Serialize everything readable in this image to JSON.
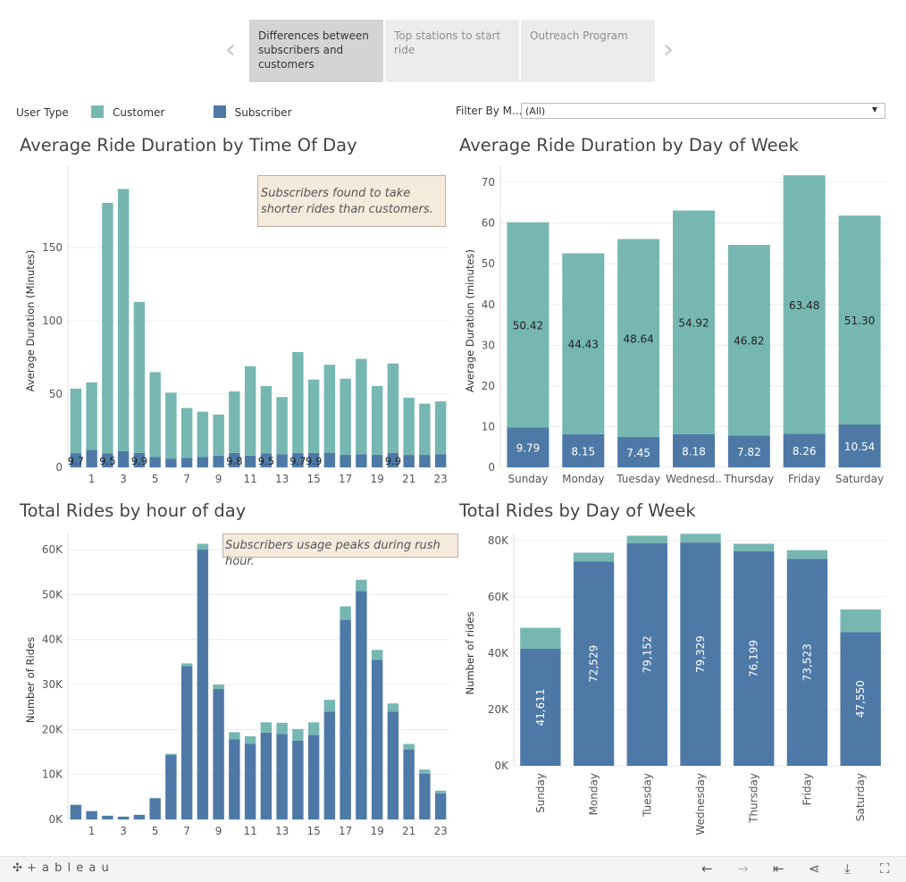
{
  "story": {
    "points": [
      {
        "label": "Differences between subscribers and customers",
        "active": true
      },
      {
        "label": "Top stations to start ride",
        "active": false
      },
      {
        "label": "Outreach Program",
        "active": false
      }
    ],
    "prev_arrow": "‹",
    "next_arrow": "›"
  },
  "legend": {
    "title": "User Type",
    "items": [
      {
        "label": "Customer",
        "color": "#76b7b2"
      },
      {
        "label": "Subscriber",
        "color": "#4e79a7"
      }
    ]
  },
  "filter": {
    "label": "Filter By M...",
    "value": "(All)",
    "caret": "▼"
  },
  "colors": {
    "customer": "#76b7b2",
    "subscriber": "#4e79a7",
    "grid": "#ececec",
    "axis_text": "#555555"
  },
  "chart_data": [
    {
      "type": "bar",
      "stacked": true,
      "title": "Average Ride Duration by Time Of Day",
      "ylabel": "Average Duration (Minutes)",
      "xlabel": "",
      "ylim": [
        0,
        200
      ],
      "yticks": [
        0,
        50,
        100,
        150
      ],
      "x": [
        0,
        1,
        2,
        3,
        4,
        5,
        6,
        7,
        8,
        9,
        10,
        11,
        12,
        13,
        14,
        15,
        16,
        17,
        18,
        19,
        20,
        21,
        22,
        23
      ],
      "xtick_labels": [
        "1",
        "3",
        "5",
        "7",
        "9",
        "11",
        "13",
        "15",
        "17",
        "19",
        "21",
        "23"
      ],
      "xtick_positions": [
        1,
        3,
        5,
        7,
        9,
        11,
        13,
        15,
        17,
        19,
        21,
        23
      ],
      "series": [
        {
          "name": "Subscriber",
          "values": [
            9.7,
            12,
            9.5,
            11,
            9.9,
            7,
            6,
            6.5,
            7,
            8,
            9.8,
            8,
            9.5,
            9,
            9.7,
            9.9,
            10,
            8.5,
            9,
            8.5,
            9.9,
            8.5,
            8.5,
            9
          ]
        },
        {
          "name": "Customer",
          "values": [
            44,
            46,
            171,
            179,
            103,
            58,
            45,
            34,
            31,
            28,
            42,
            61,
            46,
            39,
            69,
            50,
            60,
            52,
            65,
            47,
            61,
            39,
            35,
            36
          ]
        }
      ],
      "data_labels": [
        {
          "x": 0,
          "text": "9.7"
        },
        {
          "x": 2,
          "text": "9.5"
        },
        {
          "x": 4,
          "text": "9.9"
        },
        {
          "x": 10,
          "text": "9.8"
        },
        {
          "x": 12,
          "text": "9.5"
        },
        {
          "x": 14,
          "text": "9.7"
        },
        {
          "x": 15,
          "text": "9.9"
        },
        {
          "x": 20,
          "text": "9.9"
        }
      ],
      "annotation": "Subscribers found to take shorter rides than customers."
    },
    {
      "type": "bar",
      "stacked": true,
      "title": "Average Ride Duration by Day of Week",
      "ylabel": "Average Duration (minutes)",
      "xlabel": "",
      "ylim": [
        0,
        72
      ],
      "yticks": [
        0,
        10,
        20,
        30,
        40,
        50,
        60,
        70
      ],
      "categories": [
        "Sunday",
        "Monday",
        "Tuesday",
        "Wednesd..",
        "Thursday",
        "Friday",
        "Saturday"
      ],
      "series": [
        {
          "name": "Subscriber",
          "values": [
            9.79,
            8.15,
            7.45,
            8.18,
            7.82,
            8.26,
            10.54
          ],
          "labels": [
            "9.79",
            "8.15",
            "7.45",
            "8.18",
            "7.82",
            "8.26",
            "10.54"
          ]
        },
        {
          "name": "Customer",
          "values": [
            50.42,
            44.43,
            48.64,
            54.92,
            46.82,
            63.48,
            51.3
          ],
          "labels": [
            "50.42",
            "44.43",
            "48.64",
            "54.92",
            "46.82",
            "63.48",
            "51.30"
          ]
        }
      ]
    },
    {
      "type": "bar",
      "stacked": true,
      "title": "Total Rides by hour of day",
      "ylabel": "Number of Rides",
      "xlabel": "",
      "ylim": [
        0,
        62000
      ],
      "yticks": [
        0,
        10000,
        20000,
        30000,
        40000,
        50000,
        60000
      ],
      "ytick_labels": [
        "0K",
        "10K",
        "20K",
        "30K",
        "40K",
        "50K",
        "60K"
      ],
      "x": [
        0,
        1,
        2,
        3,
        4,
        5,
        6,
        7,
        8,
        9,
        10,
        11,
        12,
        13,
        14,
        15,
        16,
        17,
        18,
        19,
        20,
        21,
        22,
        23
      ],
      "xtick_labels": [
        "1",
        "3",
        "5",
        "7",
        "9",
        "11",
        "13",
        "15",
        "17",
        "19",
        "21",
        "23"
      ],
      "xtick_positions": [
        1,
        3,
        5,
        7,
        9,
        11,
        13,
        15,
        17,
        19,
        21,
        23
      ],
      "series": [
        {
          "name": "Subscriber",
          "values": [
            3200,
            1800,
            800,
            600,
            1000,
            4700,
            14300,
            34100,
            60000,
            29000,
            17800,
            16800,
            19300,
            19000,
            17500,
            18800,
            24000,
            44400,
            50800,
            35500,
            24000,
            15500,
            10200,
            5800
          ]
        },
        {
          "name": "Customer",
          "values": [
            100,
            100,
            50,
            50,
            50,
            100,
            300,
            600,
            1300,
            1000,
            1600,
            1700,
            2300,
            2500,
            2600,
            2800,
            2600,
            3000,
            2500,
            2200,
            1800,
            1300,
            900,
            600
          ]
        }
      ],
      "annotation": "Subscribers usage peaks during rush hour."
    },
    {
      "type": "bar",
      "stacked": true,
      "title": "Total Rides by Day of Week",
      "ylabel": "Number of rides",
      "xlabel": "",
      "ylim": [
        0,
        80000
      ],
      "yticks": [
        0,
        20000,
        40000,
        60000,
        80000
      ],
      "ytick_labels": [
        "0K",
        "20K",
        "40K",
        "60K",
        "80K"
      ],
      "categories": [
        "Sunday",
        "Monday",
        "Tuesday",
        "Wednesday",
        "Thursday",
        "Friday",
        "Saturday"
      ],
      "series": [
        {
          "name": "Subscriber",
          "values": [
            41611,
            72529,
            79152,
            79329,
            76199,
            73523,
            47550
          ],
          "labels": [
            "41,611",
            "72,529",
            "79,152",
            "79,329",
            "76,199",
            "73,523",
            "47,550"
          ]
        },
        {
          "name": "Customer",
          "values": [
            7400,
            3200,
            2600,
            3100,
            2700,
            3100,
            8000
          ]
        }
      ]
    }
  ],
  "toolbar": {
    "brand": "+ a b l e a u",
    "icons": [
      {
        "name": "undo-icon",
        "glyph": "←"
      },
      {
        "name": "redo-icon",
        "glyph": "→"
      },
      {
        "name": "revert-icon",
        "glyph": "⇤"
      },
      {
        "name": "share-icon",
        "glyph": "⋖"
      },
      {
        "name": "download-icon",
        "glyph": "⤓"
      },
      {
        "name": "fullscreen-icon",
        "glyph": "⛶"
      }
    ]
  }
}
